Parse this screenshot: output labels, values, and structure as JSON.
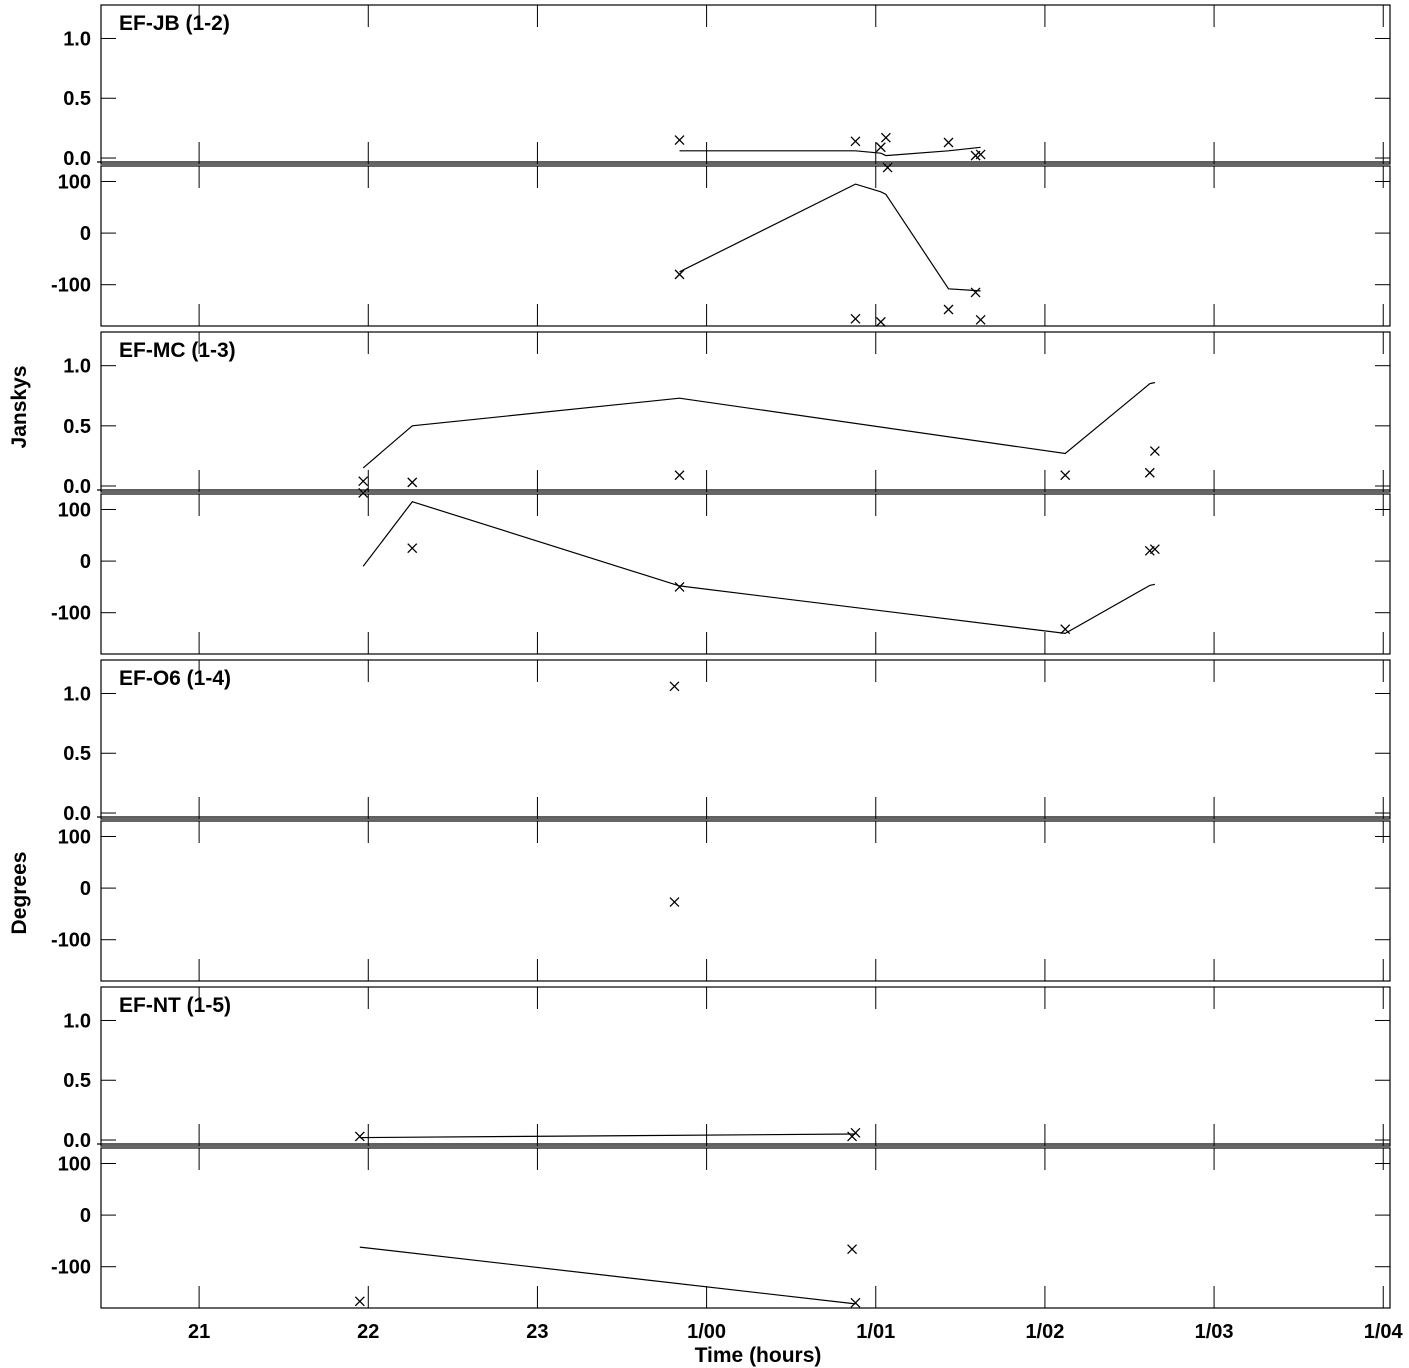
{
  "chart_data": {
    "type": "scatter",
    "xlabel": "Time (hours)",
    "amp_ylabel": "Janskys",
    "phase_ylabel": "Degrees",
    "x_ticks": [
      {
        "t": 21,
        "label": "21"
      },
      {
        "t": 22,
        "label": "22"
      },
      {
        "t": 23,
        "label": "23"
      },
      {
        "t": 24,
        "label": "1/00"
      },
      {
        "t": 25,
        "label": "1/01"
      },
      {
        "t": 26,
        "label": "1/02"
      },
      {
        "t": 27,
        "label": "1/03"
      },
      {
        "t": 28,
        "label": "1/04"
      }
    ],
    "xlim": [
      20.42,
      28.04
    ],
    "amp_ylim": [
      -0.05,
      1.28
    ],
    "phase_ylim": [
      -180,
      130
    ],
    "amp_ticks": [
      {
        "v": 0,
        "label": "0.0"
      },
      {
        "v": 0.5,
        "label": "0.5"
      },
      {
        "v": 1.0,
        "label": "1.0"
      }
    ],
    "phase_ticks": [
      {
        "v": -100,
        "label": "-100"
      },
      {
        "v": 0,
        "label": "0"
      },
      {
        "v": 100,
        "label": "100"
      }
    ],
    "baselines": [
      {
        "title": "EF-JB (1-2)",
        "amp_points": [
          [
            23.84,
            0.15
          ],
          [
            24.88,
            0.14
          ],
          [
            25.03,
            0.09
          ],
          [
            25.06,
            0.17
          ],
          [
            25.07,
            -0.08
          ],
          [
            25.43,
            0.13
          ],
          [
            25.59,
            0.02
          ],
          [
            25.62,
            0.03
          ]
        ],
        "amp_model": [
          [
            23.84,
            0.06
          ],
          [
            24.88,
            0.06
          ],
          [
            25.03,
            0.04
          ],
          [
            25.06,
            0.02
          ],
          [
            25.43,
            0.06
          ],
          [
            25.62,
            0.09
          ]
        ],
        "phase_points": [
          [
            23.84,
            -80
          ],
          [
            24.88,
            -166
          ],
          [
            25.03,
            -172
          ],
          [
            25.43,
            -148
          ],
          [
            25.59,
            -115
          ],
          [
            25.62,
            -168
          ]
        ],
        "phase_model": [
          [
            23.84,
            -75
          ],
          [
            24.88,
            95
          ],
          [
            25.03,
            80
          ],
          [
            25.06,
            75
          ],
          [
            25.43,
            -108
          ],
          [
            25.62,
            -112
          ]
        ]
      },
      {
        "title": "EF-MC (1-3)",
        "amp_points": [
          [
            21.97,
            0.04
          ],
          [
            22.26,
            0.03
          ],
          [
            23.84,
            0.09
          ],
          [
            26.12,
            0.09
          ],
          [
            26.62,
            0.11
          ],
          [
            26.65,
            0.29
          ]
        ],
        "amp_model": [
          [
            21.97,
            0.15
          ],
          [
            22.26,
            0.5
          ],
          [
            23.84,
            0.73
          ],
          [
            26.12,
            0.27
          ],
          [
            26.62,
            0.85
          ],
          [
            26.65,
            0.86
          ]
        ],
        "phase_points": [
          [
            21.97,
            132
          ],
          [
            22.26,
            25
          ],
          [
            23.84,
            -50
          ],
          [
            26.12,
            -132
          ],
          [
            26.62,
            20
          ],
          [
            26.65,
            23
          ]
        ],
        "phase_model": [
          [
            21.97,
            -10
          ],
          [
            22.26,
            115
          ],
          [
            23.84,
            -48
          ],
          [
            26.12,
            -140
          ],
          [
            26.62,
            -47
          ],
          [
            26.65,
            -45
          ]
        ]
      },
      {
        "title": "EF-O6 (1-4)",
        "amp_points": [
          [
            23.81,
            1.06
          ]
        ],
        "amp_model": [],
        "phase_points": [
          [
            23.81,
            -27
          ]
        ],
        "phase_model": []
      },
      {
        "title": "EF-NT (1-5)",
        "amp_points": [
          [
            21.95,
            0.03
          ],
          [
            24.86,
            0.03
          ],
          [
            24.88,
            0.06
          ]
        ],
        "amp_model": [
          [
            21.95,
            0.02
          ],
          [
            24.88,
            0.05
          ]
        ],
        "phase_points": [
          [
            21.95,
            -167
          ],
          [
            24.86,
            -66
          ],
          [
            24.88,
            -170
          ]
        ],
        "phase_model": [
          [
            21.95,
            -62
          ],
          [
            24.88,
            -172
          ]
        ]
      }
    ]
  }
}
